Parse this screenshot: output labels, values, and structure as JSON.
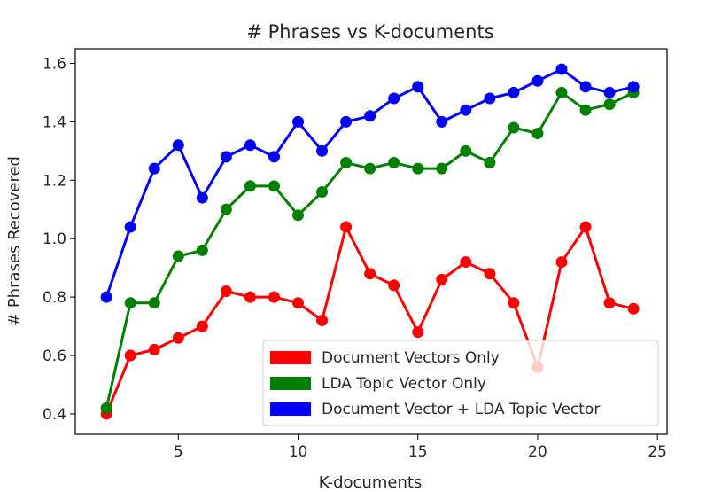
{
  "chart_data": {
    "type": "line",
    "title": "# Phrases vs K-documents",
    "xlabel": "K-documents",
    "ylabel": "# Phrases Recovered",
    "xlim": [
      0.7,
      25.4
    ],
    "ylim": [
      0.33,
      1.65
    ],
    "xticks": [
      5,
      10,
      15,
      20,
      25
    ],
    "yticks": [
      0.4,
      0.6,
      0.8,
      1.0,
      1.2,
      1.4,
      1.6
    ],
    "xtick_labels": [
      "5",
      "10",
      "15",
      "20",
      "25"
    ],
    "ytick_labels": [
      "0.4",
      "0.6",
      "0.8",
      "1.0",
      "1.2",
      "1.4",
      "1.6"
    ],
    "grid": false,
    "legend_position": "lower-right",
    "x": [
      2,
      3,
      4,
      5,
      6,
      7,
      8,
      9,
      10,
      11,
      12,
      13,
      14,
      15,
      16,
      17,
      18,
      19,
      20,
      21,
      22,
      23,
      24
    ],
    "series": [
      {
        "name": "Document Vectors Only",
        "color": "#ff0000",
        "values": [
          0.4,
          0.6,
          0.62,
          0.66,
          0.7,
          0.82,
          0.8,
          0.8,
          0.78,
          0.72,
          1.04,
          0.88,
          0.84,
          0.68,
          0.86,
          0.92,
          0.88,
          0.78,
          0.56,
          0.92,
          1.04,
          0.78,
          0.76
        ]
      },
      {
        "name": "LDA Topic Vector Only",
        "color": "#008000",
        "values": [
          0.42,
          0.78,
          0.78,
          0.94,
          0.96,
          1.1,
          1.18,
          1.18,
          1.08,
          1.16,
          1.26,
          1.24,
          1.26,
          1.24,
          1.24,
          1.3,
          1.26,
          1.38,
          1.36,
          1.5,
          1.44,
          1.46,
          1.5
        ]
      },
      {
        "name": "Document Vector + LDA Topic Vector",
        "color": "#0000ff",
        "values": [
          0.8,
          1.04,
          1.24,
          1.32,
          1.14,
          1.28,
          1.32,
          1.28,
          1.4,
          1.3,
          1.4,
          1.42,
          1.48,
          1.52,
          1.4,
          1.44,
          1.48,
          1.5,
          1.54,
          1.58,
          1.52,
          1.5,
          1.52
        ]
      }
    ]
  }
}
